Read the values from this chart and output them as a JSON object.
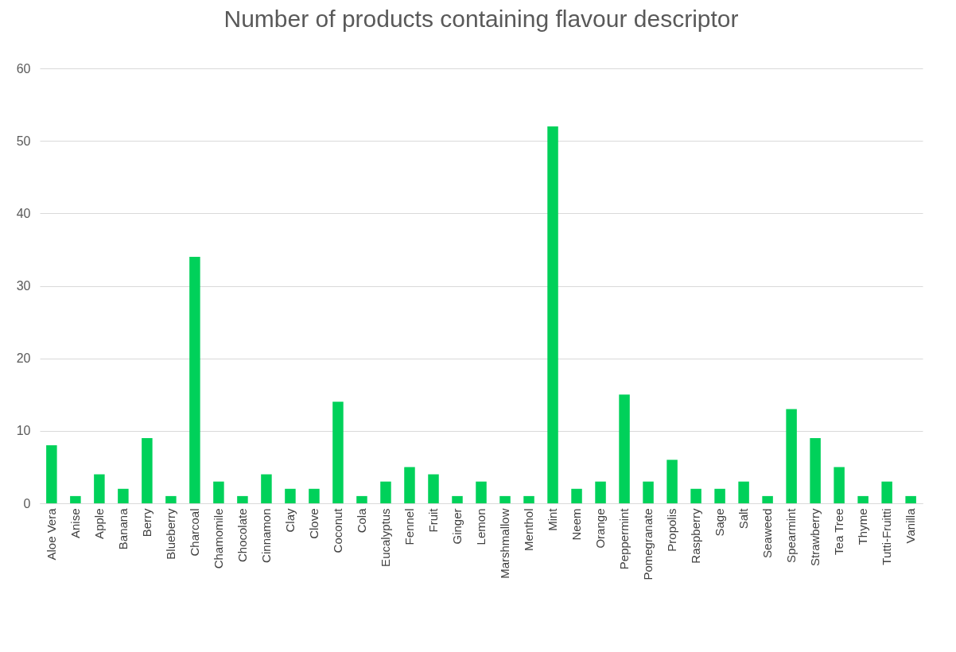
{
  "chart_data": {
    "type": "bar",
    "title": "Number of products containing flavour descriptor",
    "categories": [
      "Aloe Vera",
      "Anise",
      "Apple",
      "Banana",
      "Berry",
      "Blueberry",
      "Charcoal",
      "Chamomile",
      "Chocolate",
      "Cinnamon",
      "Clay",
      "Clove",
      "Coconut",
      "Cola",
      "Eucalyptus",
      "Fennel",
      "Fruit",
      "Ginger",
      "Lemon",
      "Marshmallow",
      "Menthol",
      "Mint",
      "Neem",
      "Orange",
      "Peppermint",
      "Pomegranate",
      "Propolis",
      "Raspberry",
      "Sage",
      "Salt",
      "Seaweed",
      "Spearmint",
      "Strawberry",
      "Tea Tree",
      "Thyme",
      "Tutti-Fruitti",
      "Vanilla"
    ],
    "values": [
      8,
      1,
      4,
      2,
      9,
      1,
      34,
      3,
      1,
      4,
      2,
      2,
      14,
      1,
      3,
      5,
      4,
      1,
      3,
      1,
      1,
      52,
      2,
      3,
      15,
      3,
      6,
      2,
      2,
      3,
      1,
      13,
      9,
      5,
      1,
      3,
      1
    ],
    "color": "#00d15a",
    "ylim": [
      0,
      60
    ],
    "yticks": [
      0,
      10,
      20,
      30,
      40,
      50,
      60
    ],
    "grid": "y",
    "legend": false
  }
}
